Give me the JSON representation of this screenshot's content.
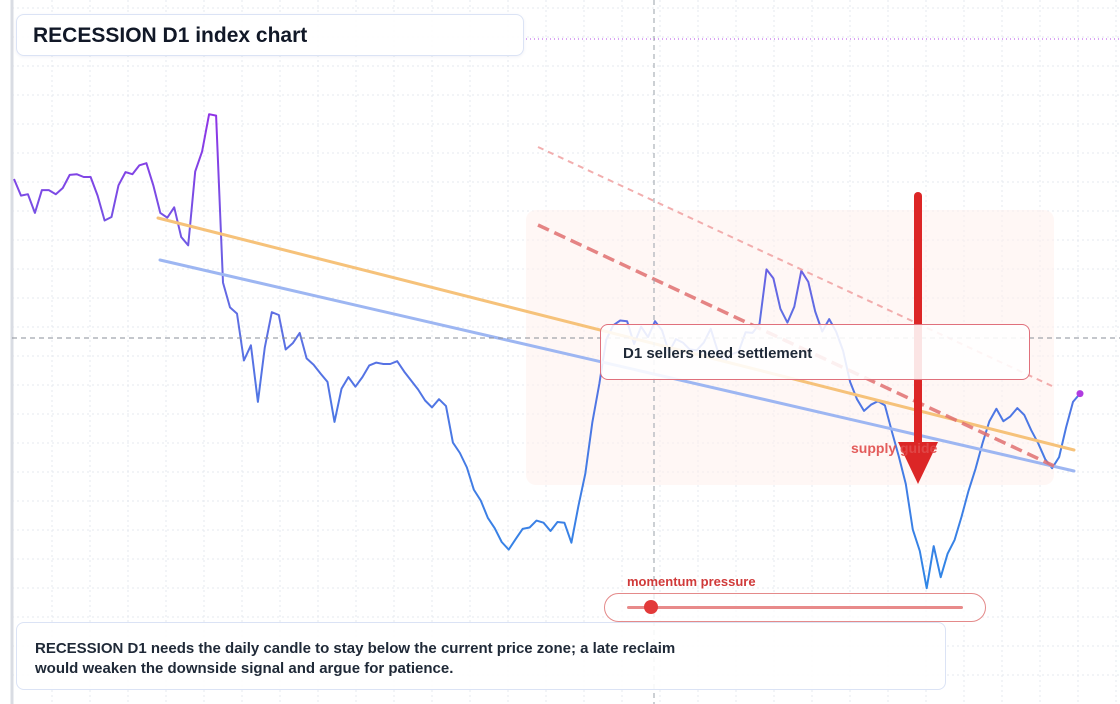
{
  "title": "RECESSION D1 index chart",
  "signal_label": "D1 sellers need settlement",
  "zone_label": "supply guide",
  "momentum": {
    "label": "momentum pressure",
    "level": 0.07
  },
  "note": {
    "line1": "RECESSION D1 needs the daily candle to stay below the current price zone; a late reclaim",
    "line2": "would weaken the downside signal and argue for patience."
  },
  "colors": {
    "price_upper": "#8b3ee0",
    "price_lower": "#3b82e8",
    "trend_orange": "#f6c27a",
    "trend_blue": "#9db6f2",
    "bearish_red": "#dc2626",
    "zone_red": "#e07878"
  },
  "chart_data": {
    "type": "line",
    "title": "RECESSION D1 index chart",
    "xlabel": "",
    "ylabel": "",
    "grid": true,
    "ylim": [
      0,
      100
    ],
    "x": [
      0,
      1,
      2,
      3,
      4,
      5,
      6,
      7,
      8,
      9,
      10,
      11,
      12,
      13,
      14,
      15,
      16,
      17,
      18,
      19,
      20,
      21,
      22,
      23,
      24,
      25,
      26,
      27,
      28,
      29,
      30,
      31,
      32,
      33,
      34,
      35,
      36,
      37,
      38,
      39,
      40,
      41,
      42,
      43,
      44,
      45,
      46,
      47,
      48,
      49,
      50,
      51,
      52,
      53,
      54,
      55,
      56,
      57,
      58,
      59,
      60,
      61,
      62,
      63,
      64,
      65,
      66,
      67,
      68,
      69,
      70,
      71,
      72,
      73,
      74,
      75,
      76,
      77,
      78,
      79,
      80,
      81,
      82,
      83,
      84,
      85,
      86,
      87,
      88,
      89,
      90,
      91,
      92,
      93,
      94,
      95,
      96,
      97,
      98,
      99,
      100,
      101,
      102,
      103,
      104,
      105,
      106,
      107,
      108,
      109,
      110,
      111,
      112,
      113,
      114,
      115,
      116,
      117,
      118,
      119,
      120,
      121,
      122,
      123,
      124,
      125,
      126,
      127,
      128,
      129,
      130,
      131,
      132,
      133,
      134,
      135,
      136,
      137,
      138,
      139,
      140,
      141,
      142,
      143,
      144,
      145,
      146,
      147,
      148,
      149,
      150,
      151,
      152,
      153
    ],
    "series": [
      {
        "values": [
          75.5,
          73.1,
          73.3,
          70.6,
          73.9,
          73.9,
          73.3,
          74.2,
          76.1,
          76.2,
          75.8,
          75.8,
          73.1,
          69.5,
          70.0,
          74.6,
          76.5,
          76.2,
          77.5,
          77.8,
          74.6,
          70.6,
          69.9,
          71.4,
          67.1,
          65.9,
          76.6,
          79.5,
          84.9,
          84.7,
          60.5,
          56.9,
          56.0,
          49.2,
          51.4,
          43.2,
          51.1,
          56.2,
          55.8,
          50.8,
          51.7,
          53.2,
          49.5,
          48.6,
          47.3,
          46.1,
          40.3,
          45.1,
          46.8,
          45.4,
          46.8,
          48.5,
          48.9,
          48.7,
          48.7,
          49.1,
          47.6,
          46.3,
          45.0,
          43.4,
          42.4,
          43.6,
          42.6,
          37.3,
          35.8,
          33.7,
          30.5,
          28.9,
          26.4,
          24.9,
          22.9,
          21.8,
          23.3,
          24.8,
          25.0,
          26.0,
          25.7,
          24.5,
          25.8,
          25.7,
          22.8,
          28.1,
          32.8,
          40.2,
          45.8,
          52.2,
          54.3,
          55.0,
          54.9,
          51.6,
          54.1,
          52.6,
          54.9,
          53.6,
          50.4,
          52.3,
          51.8,
          50.8,
          50.7,
          51.8,
          53.8,
          50.6,
          49.1,
          50.1,
          50.5,
          53.3,
          53.2,
          54.5,
          62.4,
          61.1,
          56.7,
          54.7,
          57.0,
          62.2,
          60.6,
          56.3,
          53.4,
          55.2,
          53.4,
          50.6,
          46.1,
          43.6,
          41.9,
          42.8,
          43.3,
          42.7,
          38.9,
          35.3,
          31.3,
          24.7,
          21.6,
          16.2,
          22.3,
          17.8,
          21.2,
          23.2,
          26.6,
          30.3,
          33.5,
          37.2,
          40.4,
          42.2,
          40.4,
          41.1,
          42.3,
          41.3,
          39.1,
          37.2,
          34.9,
          33.6,
          35.2,
          39.5,
          43.2,
          44.4
        ]
      }
    ]
  }
}
